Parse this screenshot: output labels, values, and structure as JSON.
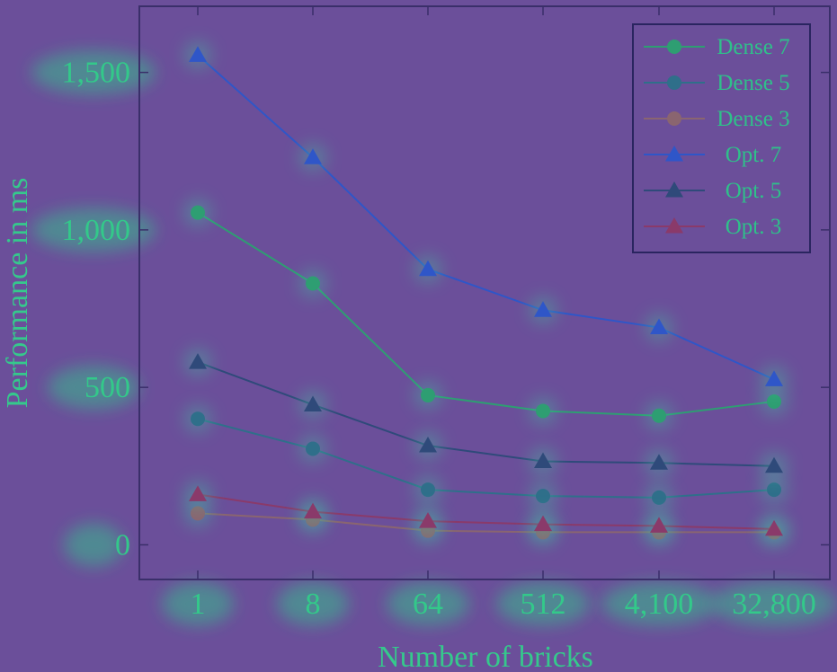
{
  "chart_data": {
    "type": "line",
    "title": "",
    "xlabel": "Number of bricks",
    "ylabel": "Performance in ms",
    "categories": [
      "1",
      "8",
      "64",
      "512",
      "4,100",
      "32,800"
    ],
    "yticks": [
      0,
      500,
      1000,
      1500
    ],
    "ytick_labels": [
      "0",
      "500",
      "1,000",
      "1,500"
    ],
    "ylim": [
      -110,
      1710
    ],
    "grid": false,
    "legend_position": "top-right",
    "series": [
      {
        "name": "Dense 7",
        "marker": "circle",
        "color": "#2e9e72",
        "values": [
          1055,
          830,
          475,
          425,
          410,
          455
        ]
      },
      {
        "name": "Dense 5",
        "marker": "circle",
        "color": "#2f6f8a",
        "values": [
          400,
          305,
          175,
          155,
          150,
          175
        ]
      },
      {
        "name": "Dense 3",
        "marker": "circle",
        "color": "#8a6570",
        "values": [
          100,
          80,
          45,
          40,
          40,
          40
        ]
      },
      {
        "name": "Opt. 7",
        "marker": "triangle",
        "color": "#2f56c8",
        "values": [
          1555,
          1230,
          875,
          745,
          690,
          525
        ]
      },
      {
        "name": "Opt. 5",
        "marker": "triangle",
        "color": "#2f4a7a",
        "values": [
          580,
          445,
          315,
          265,
          260,
          250
        ]
      },
      {
        "name": "Opt. 3",
        "marker": "triangle",
        "color": "#8a3a6a",
        "values": [
          160,
          105,
          75,
          65,
          60,
          50
        ]
      }
    ]
  }
}
